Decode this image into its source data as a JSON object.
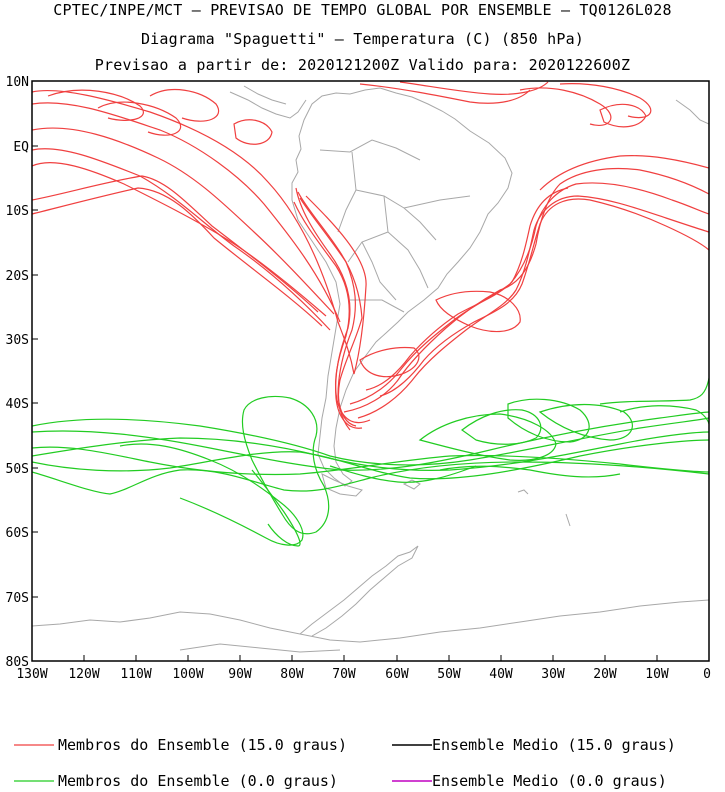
{
  "header": {
    "line1": "CPTEC/INPE/MCT — PREVISAO DE TEMPO GLOBAL POR ENSEMBLE — TQ0126L028",
    "line2": "Diagrama \"Spaguetti\" — Temperatura (C) (850 hPa)",
    "line3": "Previsao a partir de: 2020121200Z  Valido para: 2020122600Z"
  },
  "axes": {
    "y_ticks": [
      "10N",
      "EQ",
      "10S",
      "20S",
      "30S",
      "40S",
      "50S",
      "60S",
      "70S",
      "80S"
    ],
    "x_ticks": [
      "130W",
      "120W",
      "110W",
      "100W",
      "90W",
      "80W",
      "70W",
      "60W",
      "50W",
      "40W",
      "30W",
      "20W",
      "10W",
      "0"
    ],
    "lat_range": [
      -80,
      10
    ],
    "lon_range": [
      -130,
      0
    ]
  },
  "colors": {
    "members_15": "#f04040",
    "members_0": "#22cc22",
    "mean_15": "#000000",
    "mean_0": "#c000c0",
    "land": "#a8a8a8"
  },
  "legend": {
    "members_15": "Membros do Ensemble (15.0 graus)",
    "mean_15": "Ensemble Medio (15.0 graus)",
    "members_0": "Membros do Ensemble (0.0 graus)",
    "mean_0": "Ensemble Medio (0.0 graus)"
  }
}
